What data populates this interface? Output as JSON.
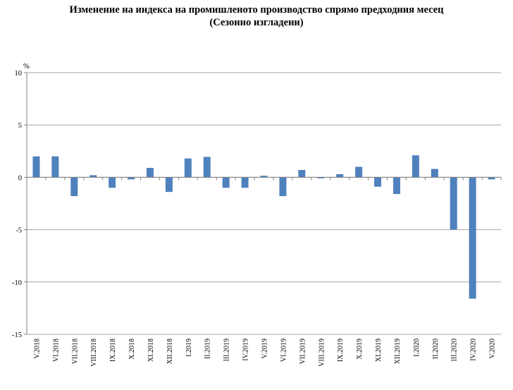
{
  "title_line1": "Изменение на индекса на промишленото производство спрямо предходния месец",
  "title_line2": "(Сезонно изгладени)",
  "chart_data": {
    "type": "bar",
    "unit_label": "%",
    "ylim": [
      -15,
      10
    ],
    "yticks": [
      10,
      5,
      0,
      -5,
      -10,
      -15
    ],
    "grid": true,
    "categories": [
      "V.2018",
      "VI.2018",
      "VII.2018",
      "VIII.2018",
      "IX.2018",
      "X.2018",
      "XI.2018",
      "XII.2018",
      "I.2019",
      "II.2019",
      "III.2019",
      "IV.2019",
      "V.2019",
      "VI.2019",
      "VII.2019",
      "VIII.2019",
      "IX.2019",
      "X.2019",
      "XI.2019",
      "XII.2019",
      "I.2020",
      "II.2020",
      "III.2020",
      "IV.2020",
      "V.2020"
    ],
    "values": [
      2.0,
      2.0,
      -1.8,
      0.2,
      -1.0,
      -0.2,
      0.9,
      -1.4,
      1.8,
      1.95,
      -1.0,
      -1.0,
      0.15,
      -1.8,
      0.7,
      -0.1,
      0.3,
      1.0,
      -0.9,
      -1.6,
      2.1,
      0.8,
      -5.0,
      -11.6,
      -0.2
    ],
    "colors": {
      "bar": "#4f81bd",
      "grid": "#a6a6a6",
      "axis": "#808080"
    }
  }
}
